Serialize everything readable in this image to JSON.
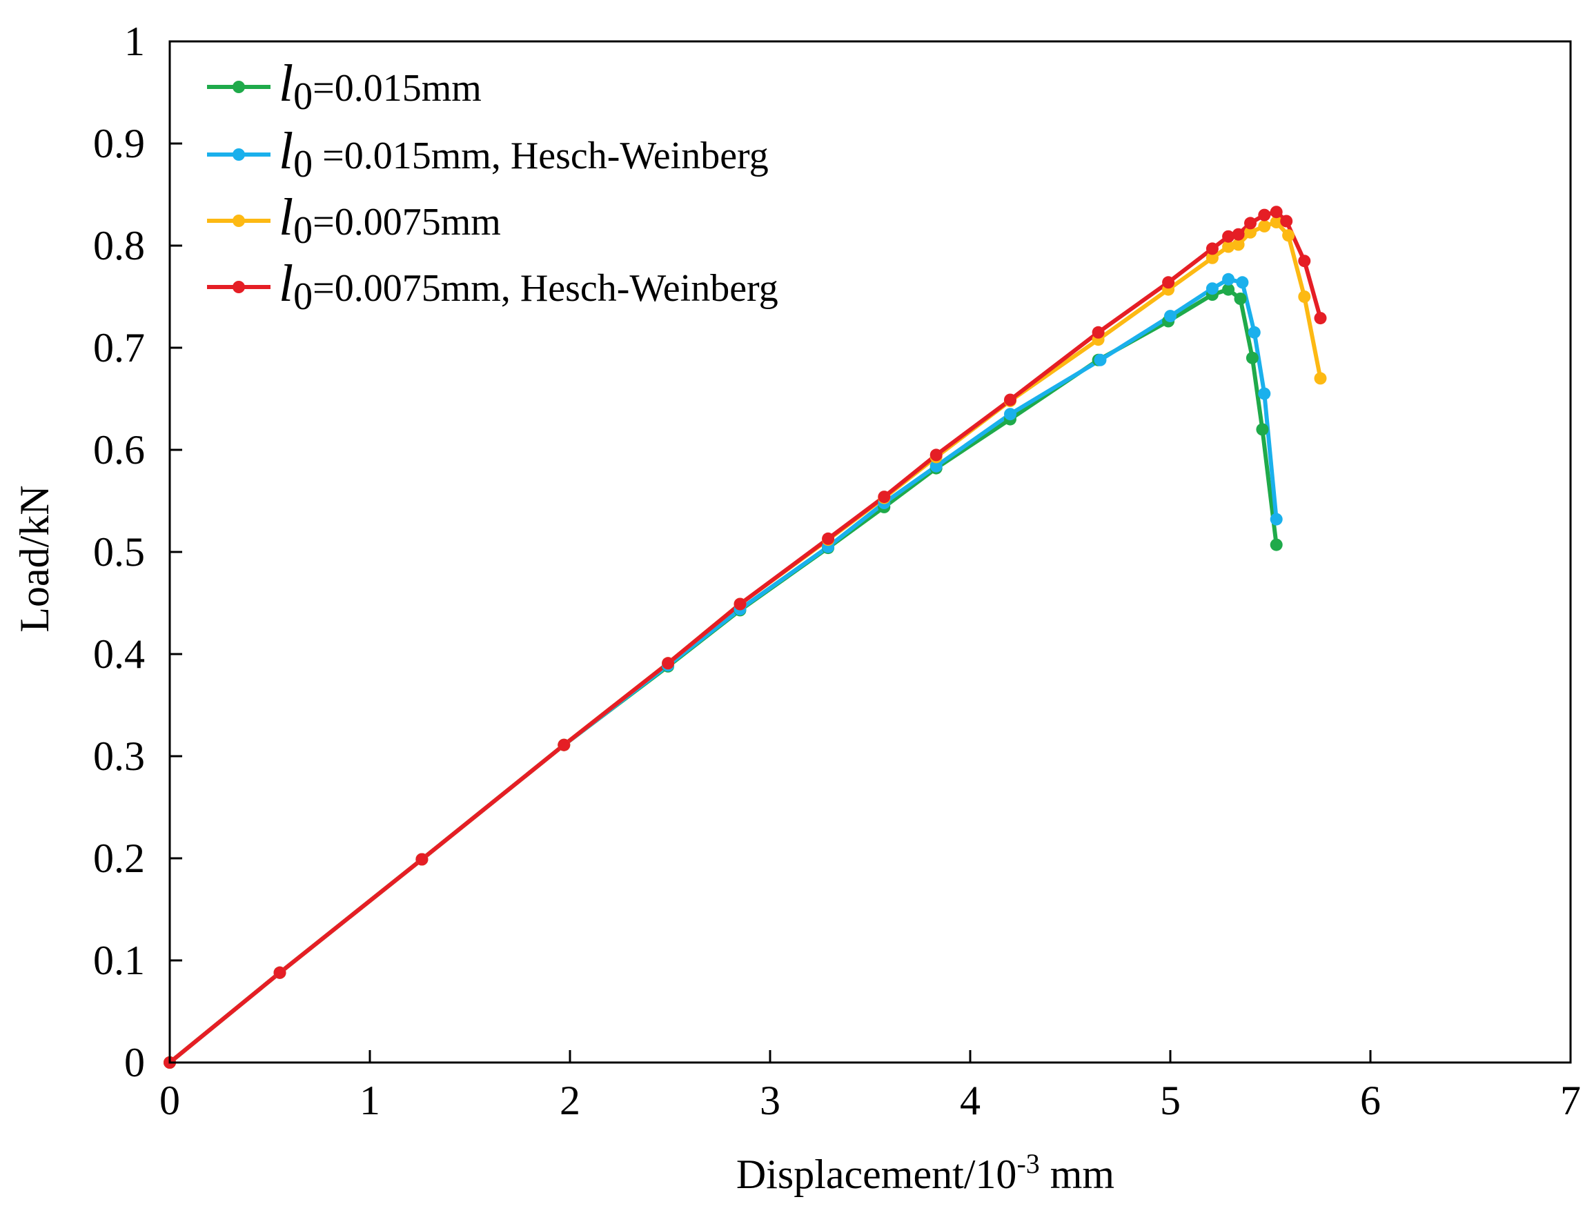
{
  "chart_data": {
    "type": "line",
    "title": "",
    "xlabel": "Displacement/10",
    "xlabel_exp": "-3",
    "xlabel_unit": " mm",
    "ylabel": "Load/kN",
    "xlim": [
      0,
      7
    ],
    "ylim": [
      0,
      1
    ],
    "xticks": [
      "0",
      "1",
      "2",
      "3",
      "4",
      "5",
      "6",
      "7"
    ],
    "yticks": [
      "0",
      "0.1",
      "0.2",
      "0.3",
      "0.4",
      "0.5",
      "0.6",
      "0.7",
      "0.8",
      "0.9",
      "1"
    ],
    "grid": false,
    "legend_position": "top-left",
    "series": [
      {
        "name": "l0=0.015mm",
        "legend_symbol": "l",
        "legend_sub": "0",
        "legend_rest": "=0.015mm",
        "color": "#1faa4a",
        "x": [
          0,
          0.55,
          1.26,
          1.97,
          2.49,
          2.85,
          3.29,
          3.57,
          3.83,
          4.2,
          4.64,
          4.99,
          5.21,
          5.29,
          5.35,
          5.41,
          5.46,
          5.53
        ],
        "y": [
          0,
          0.088,
          0.199,
          0.311,
          0.388,
          0.443,
          0.504,
          0.544,
          0.582,
          0.63,
          0.688,
          0.726,
          0.752,
          0.757,
          0.748,
          0.69,
          0.62,
          0.507
        ]
      },
      {
        "name": "l0 =0.015mm, Hesch-Weinberg",
        "legend_symbol": "l",
        "legend_sub": "0",
        "legend_rest": " =0.015mm, Hesch-Weinberg",
        "color": "#1ab0ec",
        "x": [
          0,
          0.55,
          1.26,
          1.97,
          2.49,
          2.85,
          3.29,
          3.57,
          3.83,
          4.2,
          4.65,
          5.0,
          5.21,
          5.29,
          5.36,
          5.42,
          5.47,
          5.53
        ],
        "y": [
          0,
          0.088,
          0.199,
          0.311,
          0.389,
          0.444,
          0.505,
          0.548,
          0.584,
          0.635,
          0.688,
          0.731,
          0.758,
          0.767,
          0.764,
          0.715,
          0.655,
          0.532
        ]
      },
      {
        "name": "l0=0.0075mm",
        "legend_symbol": "l",
        "legend_sub": "0",
        "legend_rest": "=0.0075mm",
        "color": "#fdb913",
        "x": [
          0,
          0.55,
          1.26,
          1.97,
          2.49,
          2.85,
          3.29,
          3.57,
          3.83,
          4.2,
          4.64,
          4.99,
          5.21,
          5.29,
          5.34,
          5.4,
          5.47,
          5.53,
          5.59,
          5.67,
          5.75
        ],
        "y": [
          0,
          0.088,
          0.199,
          0.311,
          0.391,
          0.449,
          0.512,
          0.553,
          0.593,
          0.648,
          0.708,
          0.757,
          0.788,
          0.799,
          0.801,
          0.813,
          0.819,
          0.823,
          0.81,
          0.75,
          0.67
        ]
      },
      {
        "name": "l0=0.0075mm, Hesch-Weinberg",
        "legend_symbol": "l",
        "legend_sub": "0",
        "legend_rest": "=0.0075mm, Hesch-Weinberg",
        "color": "#e51e25",
        "x": [
          0,
          0.55,
          1.26,
          1.97,
          2.49,
          2.85,
          3.29,
          3.57,
          3.83,
          4.2,
          4.64,
          4.99,
          5.21,
          5.29,
          5.34,
          5.4,
          5.47,
          5.53,
          5.58,
          5.67,
          5.75
        ],
        "y": [
          0,
          0.088,
          0.199,
          0.311,
          0.391,
          0.449,
          0.513,
          0.554,
          0.595,
          0.649,
          0.715,
          0.764,
          0.797,
          0.809,
          0.811,
          0.822,
          0.83,
          0.833,
          0.824,
          0.785,
          0.729
        ]
      }
    ]
  }
}
